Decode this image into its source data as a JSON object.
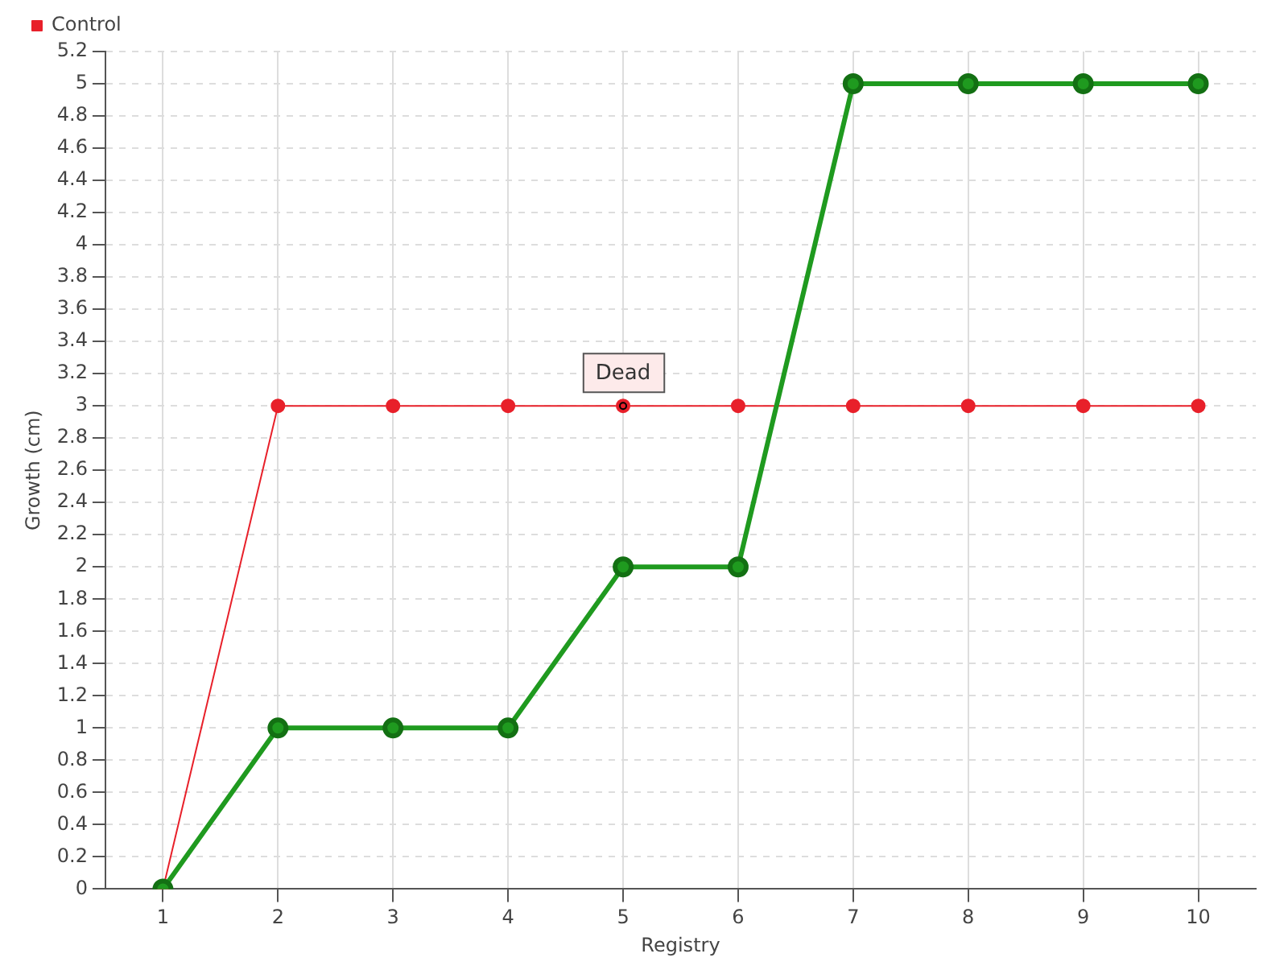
{
  "chart_data": {
    "type": "line",
    "xlabel": "Registry",
    "ylabel": "Growth (cm)",
    "categories": [
      "1",
      "2",
      "3",
      "4",
      "5",
      "6",
      "7",
      "8",
      "9",
      "10"
    ],
    "series": [
      {
        "color": "#1f9a1f",
        "values": [
          0,
          1,
          1,
          1,
          2,
          2,
          5,
          5,
          5,
          5
        ]
      },
      {
        "name": "Control",
        "color": "#e8202a",
        "values": [
          0,
          3,
          3,
          3,
          3,
          3,
          3,
          3,
          3,
          3
        ]
      }
    ],
    "ylim": [
      0,
      5.2
    ],
    "yticks": [
      0,
      0.2,
      0.4,
      0.6,
      0.8,
      1,
      1.2,
      1.4,
      1.6,
      1.8,
      2,
      2.2,
      2.4,
      2.6,
      2.8,
      3,
      3.2,
      3.4,
      3.6,
      3.8,
      4,
      4.2,
      4.4,
      4.6,
      4.8,
      5,
      5.2
    ],
    "annotations": [
      {
        "text": "Dead",
        "x": "5",
        "y": 3
      }
    ],
    "grid": true,
    "legend": "top left",
    "marker": "circle",
    "line_style": "solid"
  }
}
